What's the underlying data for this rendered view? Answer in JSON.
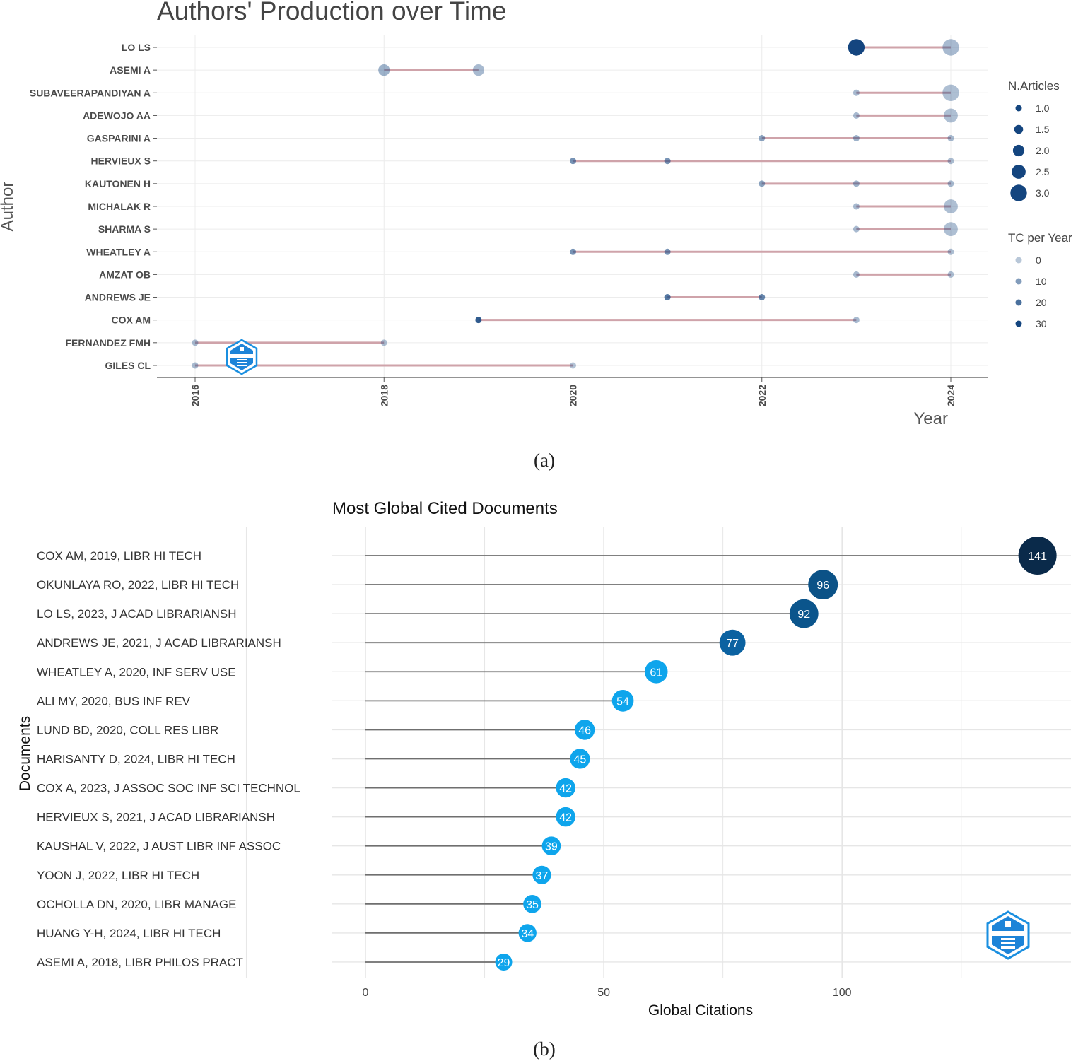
{
  "panel_a": {
    "caption": "(a)",
    "chart_data": {
      "type": "scatter",
      "title": "Authors' Production over Time",
      "xlabel": "Year",
      "ylabel": "Author",
      "x_ticks": [
        "2016",
        "2018",
        "2020",
        "2022",
        "2024"
      ],
      "xlim": [
        2015.6,
        2024.4
      ],
      "authors": [
        "LO LS",
        "ASEMI A",
        "SUBAVEERAPANDIYAN A",
        "ADEWOJO AA",
        "GASPARINI A",
        "HERVIEUX S",
        "KAUTONEN H",
        "MICHALAK R",
        "SHARMA S",
        "WHEATLEY A",
        "AMZAT OB",
        "ANDREWS JE",
        "COX AM",
        "FERNANDEZ FMH",
        "GILES CL"
      ],
      "ranges": [
        [
          2023,
          2024
        ],
        [
          2018,
          2019
        ],
        [
          2023,
          2024
        ],
        [
          2023,
          2024
        ],
        [
          2022,
          2024
        ],
        [
          2020,
          2024
        ],
        [
          2022,
          2024
        ],
        [
          2023,
          2024
        ],
        [
          2023,
          2024
        ],
        [
          2020,
          2024
        ],
        [
          2023,
          2024
        ],
        [
          2021,
          2022
        ],
        [
          2019,
          2023
        ],
        [
          2016,
          2018
        ],
        [
          2016,
          2020
        ]
      ],
      "points": [
        {
          "author": "LO LS",
          "year": 2023,
          "articles": 3,
          "tc_per_year": 30
        },
        {
          "author": "LO LS",
          "year": 2024,
          "articles": 3,
          "tc_per_year": 3
        },
        {
          "author": "ASEMI A",
          "year": 2018,
          "articles": 2,
          "tc_per_year": 5
        },
        {
          "author": "ASEMI A",
          "year": 2019,
          "articles": 2,
          "tc_per_year": 3
        },
        {
          "author": "SUBAVEERAPANDIYAN A",
          "year": 2023,
          "articles": 1,
          "tc_per_year": 3
        },
        {
          "author": "SUBAVEERAPANDIYAN A",
          "year": 2024,
          "articles": 3,
          "tc_per_year": 2
        },
        {
          "author": "ADEWOJO AA",
          "year": 2023,
          "articles": 1,
          "tc_per_year": 3
        },
        {
          "author": "ADEWOJO AA",
          "year": 2024,
          "articles": 2.5,
          "tc_per_year": 2
        },
        {
          "author": "GASPARINI A",
          "year": 2022,
          "articles": 1,
          "tc_per_year": 8
        },
        {
          "author": "GASPARINI A",
          "year": 2023,
          "articles": 1,
          "tc_per_year": 5
        },
        {
          "author": "GASPARINI A",
          "year": 2024,
          "articles": 1,
          "tc_per_year": 3
        },
        {
          "author": "HERVIEUX S",
          "year": 2020,
          "articles": 1,
          "tc_per_year": 12
        },
        {
          "author": "HERVIEUX S",
          "year": 2021,
          "articles": 1,
          "tc_per_year": 12
        },
        {
          "author": "HERVIEUX S",
          "year": 2024,
          "articles": 1,
          "tc_per_year": 2
        },
        {
          "author": "KAUTONEN H",
          "year": 2022,
          "articles": 1,
          "tc_per_year": 8
        },
        {
          "author": "KAUTONEN H",
          "year": 2023,
          "articles": 1,
          "tc_per_year": 5
        },
        {
          "author": "KAUTONEN H",
          "year": 2024,
          "articles": 1,
          "tc_per_year": 3
        },
        {
          "author": "MICHALAK R",
          "year": 2023,
          "articles": 1,
          "tc_per_year": 3
        },
        {
          "author": "MICHALAK R",
          "year": 2024,
          "articles": 2.5,
          "tc_per_year": 2
        },
        {
          "author": "SHARMA S",
          "year": 2023,
          "articles": 1,
          "tc_per_year": 3
        },
        {
          "author": "SHARMA S",
          "year": 2024,
          "articles": 2.5,
          "tc_per_year": 2
        },
        {
          "author": "WHEATLEY A",
          "year": 2020,
          "articles": 1,
          "tc_per_year": 12
        },
        {
          "author": "WHEATLEY A",
          "year": 2021,
          "articles": 1,
          "tc_per_year": 12
        },
        {
          "author": "WHEATLEY A",
          "year": 2024,
          "articles": 1,
          "tc_per_year": 2
        },
        {
          "author": "AMZAT OB",
          "year": 2023,
          "articles": 1,
          "tc_per_year": 3
        },
        {
          "author": "AMZAT OB",
          "year": 2024,
          "articles": 1,
          "tc_per_year": 2
        },
        {
          "author": "ANDREWS JE",
          "year": 2021,
          "articles": 1,
          "tc_per_year": 18
        },
        {
          "author": "ANDREWS JE",
          "year": 2022,
          "articles": 1,
          "tc_per_year": 15
        },
        {
          "author": "COX AM",
          "year": 2019,
          "articles": 1,
          "tc_per_year": 25
        },
        {
          "author": "COX AM",
          "year": 2023,
          "articles": 1,
          "tc_per_year": 3
        },
        {
          "author": "FERNANDEZ FMH",
          "year": 2016,
          "articles": 1,
          "tc_per_year": 3
        },
        {
          "author": "FERNANDEZ FMH",
          "year": 2018,
          "articles": 1,
          "tc_per_year": 2
        },
        {
          "author": "GILES CL",
          "year": 2016,
          "articles": 1,
          "tc_per_year": 3
        },
        {
          "author": "GILES CL",
          "year": 2020,
          "articles": 1,
          "tc_per_year": 1
        }
      ],
      "legend_size": {
        "title": "N.Articles",
        "values": [
          1.0,
          1.5,
          2.0,
          2.5,
          3.0
        ],
        "labels": [
          "1.0",
          "1.5",
          "2.0",
          "2.5",
          "3.0"
        ]
      },
      "legend_color": {
        "title": "TC per Year",
        "values": [
          0,
          10,
          20,
          30
        ],
        "labels": [
          "0",
          "10",
          "20",
          "30"
        ]
      },
      "legend_position": "right",
      "grid": true,
      "colors": {
        "point": "#14457f",
        "segment": "#cfa3aa",
        "grid": "#ececec"
      }
    }
  },
  "panel_b": {
    "caption": "(b)",
    "chart_data": {
      "type": "scatter",
      "title": "Most Global Cited Documents",
      "xlabel": "Global Citations",
      "ylabel": "Documents",
      "x_ticks": [
        0,
        50,
        100
      ],
      "xlim": [
        -14.3,
        148
      ],
      "categories": [
        "COX AM, 2019, LIBR HI TECH",
        "OKUNLAYA RO, 2022, LIBR HI TECH",
        "LO LS, 2023, J ACAD LIBRARIANSH",
        "ANDREWS JE, 2021, J ACAD LIBRARIANSH",
        "WHEATLEY A, 2020, INF SERV USE",
        "ALI MY, 2020, BUS INF REV",
        "LUND BD, 2020, COLL RES LIBR",
        "HARISANTY D, 2024, LIBR HI TECH",
        "COX A, 2023, J ASSOC SOC INF SCI TECHNOL",
        "HERVIEUX S, 2021, J ACAD LIBRARIANSH",
        "KAUSHAL V, 2022, J AUST LIBR INF ASSOC",
        "YOON J, 2022, LIBR HI TECH",
        "OCHOLLA DN, 2020, LIBR MANAGE",
        "HUANG Y-H, 2024, LIBR HI TECH",
        "ASEMI A, 2018, LIBR PHILOS PRACT"
      ],
      "values": [
        141,
        96,
        92,
        77,
        61,
        54,
        46,
        45,
        42,
        42,
        39,
        37,
        35,
        34,
        29
      ],
      "labels": [
        "141",
        "96",
        "92",
        "77",
        "61",
        "54",
        "46",
        "45",
        "42",
        "42",
        "39",
        "37",
        "35",
        "34",
        "29"
      ],
      "grid": true,
      "colors": {
        "low": "#0ea5ec",
        "high": "#0a2a4a",
        "stem": "#6f6f6f",
        "grid": "#e6e6e6"
      }
    }
  }
}
